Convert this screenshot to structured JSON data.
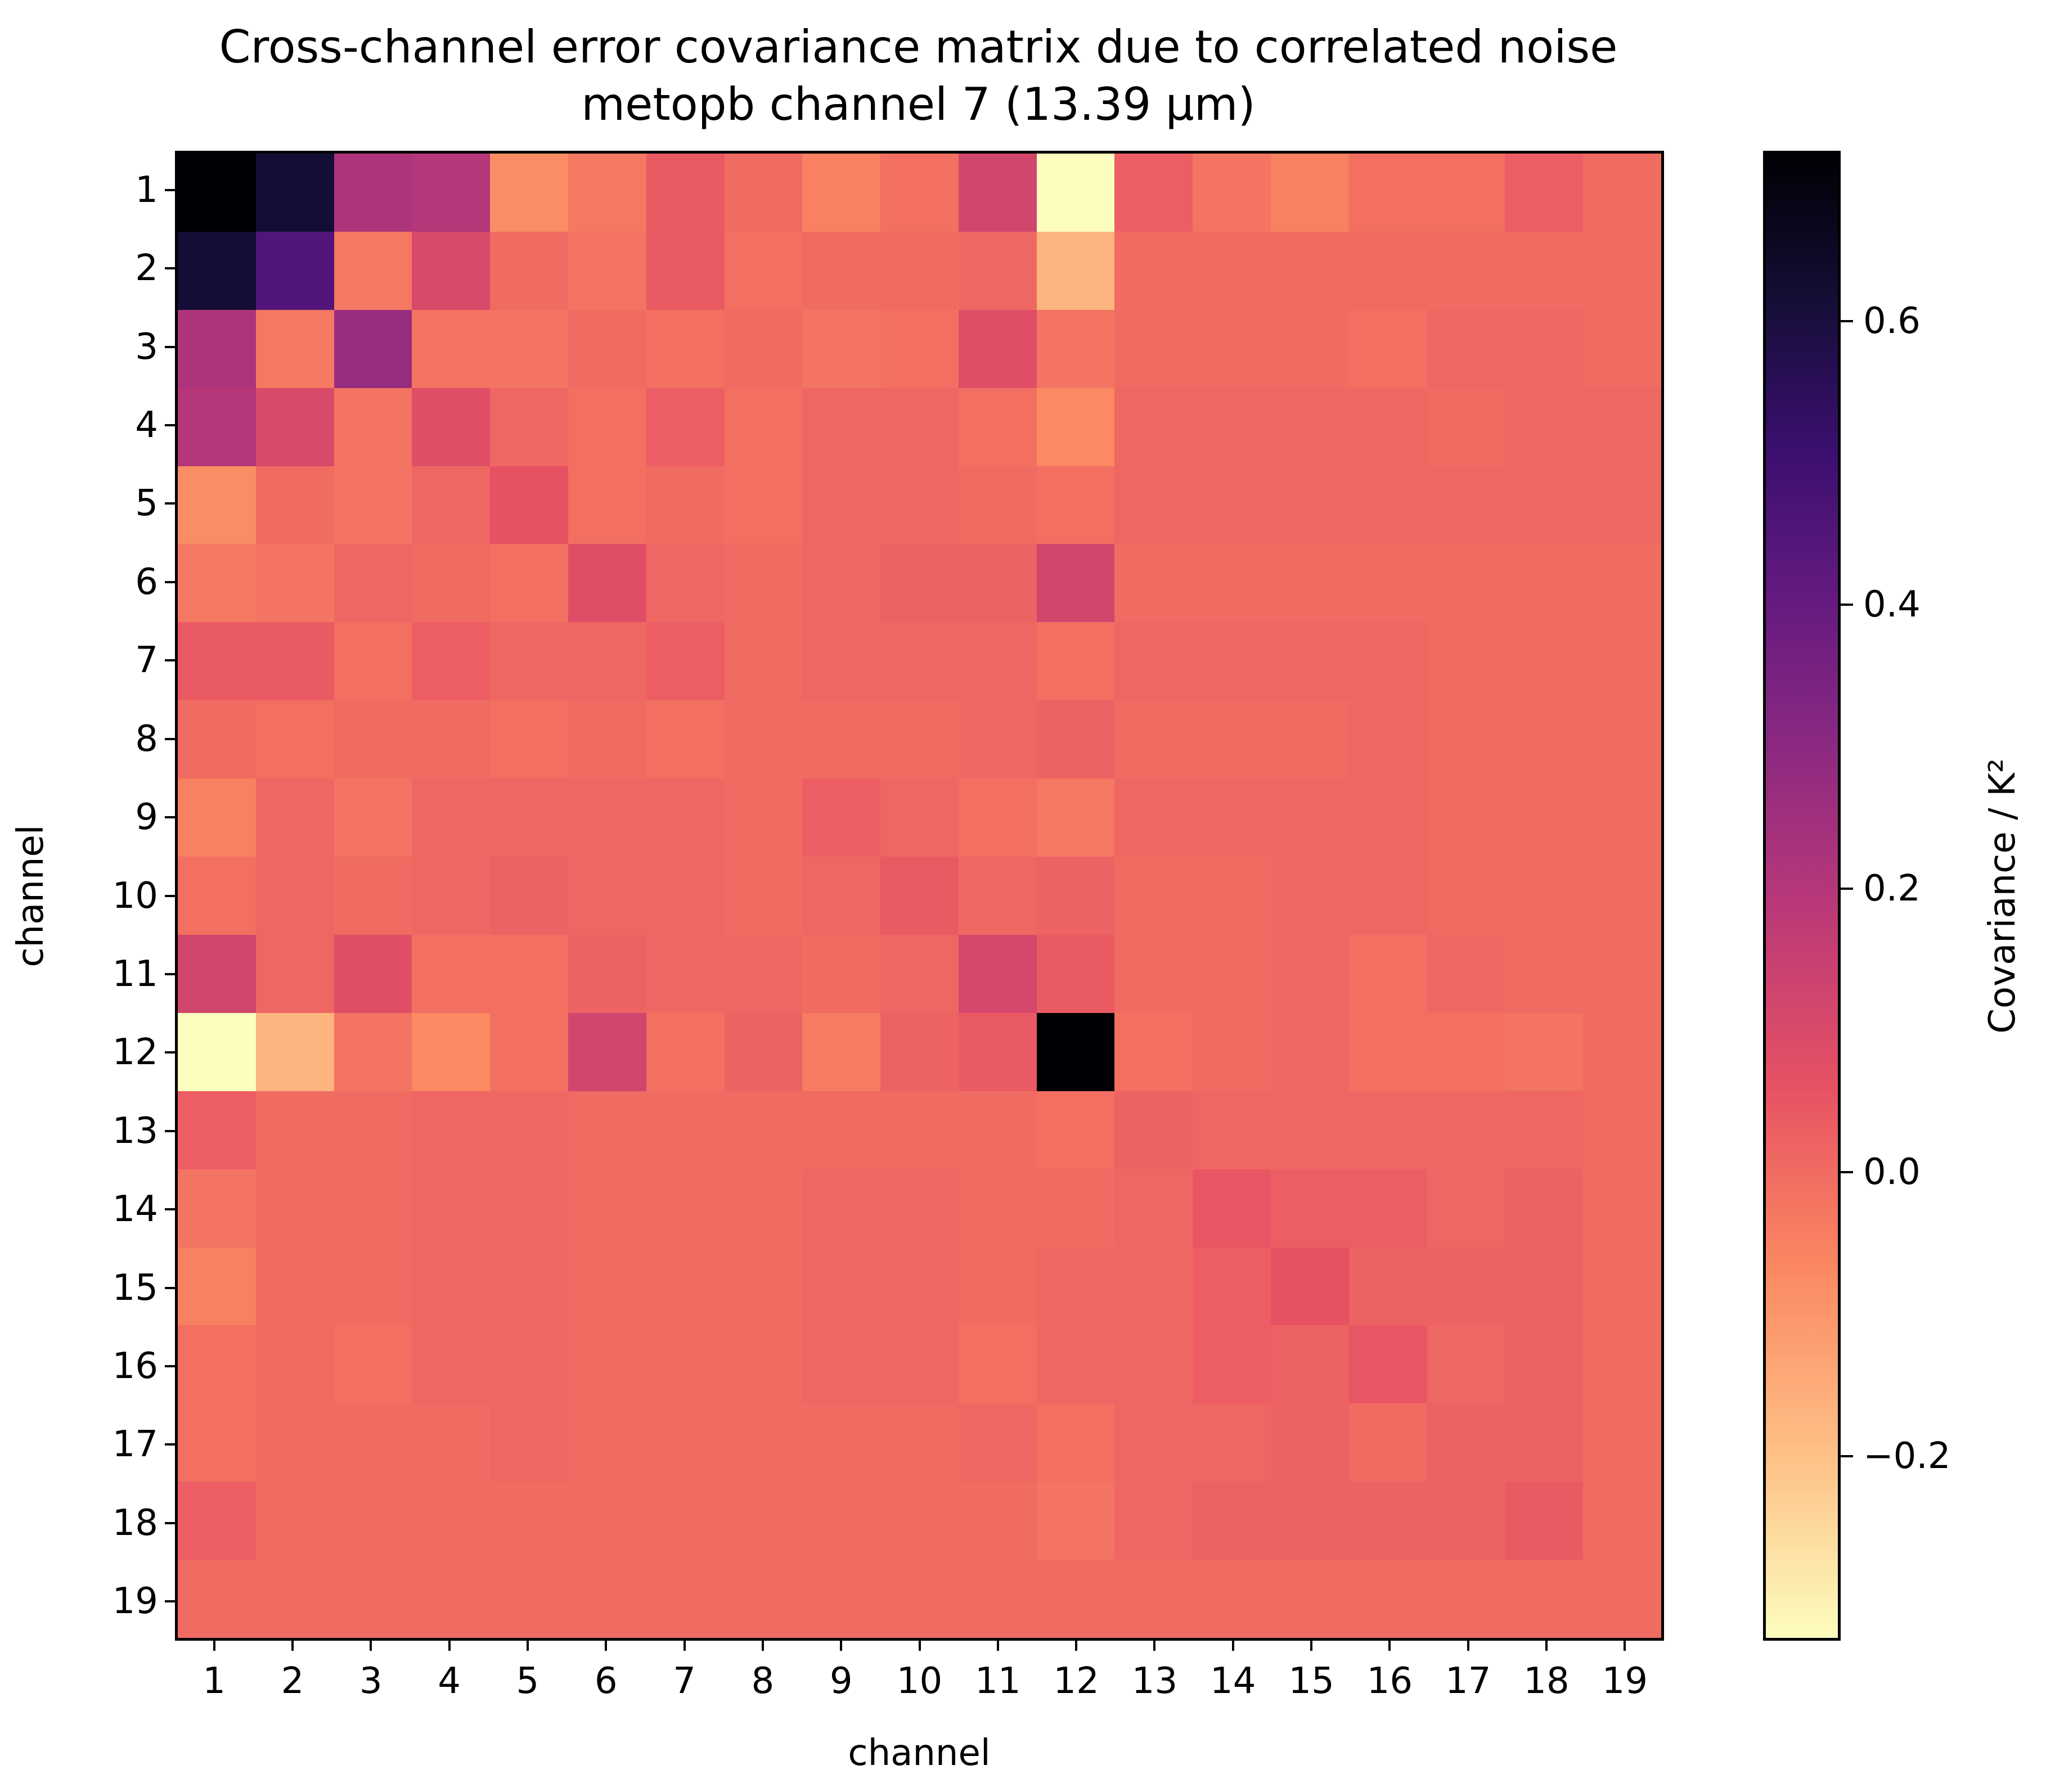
{
  "chart_data": {
    "type": "heatmap",
    "title": "Cross-channel error covariance matrix due to correlated noise",
    "subtitle": "metopb channel 7 (13.39 µm)",
    "xlabel": "channel",
    "ylabel": "channel",
    "x_tick_labels": [
      "1",
      "2",
      "3",
      "4",
      "5",
      "6",
      "7",
      "8",
      "9",
      "10",
      "11",
      "12",
      "13",
      "14",
      "15",
      "16",
      "17",
      "18",
      "19"
    ],
    "y_tick_labels": [
      "1",
      "2",
      "3",
      "4",
      "5",
      "6",
      "7",
      "8",
      "9",
      "10",
      "11",
      "12",
      "13",
      "14",
      "15",
      "16",
      "17",
      "18",
      "19"
    ],
    "colormap": "magma_r",
    "colorbar": {
      "label": "Covariance / K²",
      "vmin": -0.33,
      "vmax": 0.72,
      "ticks": [
        -0.2,
        0.0,
        0.2,
        0.4,
        0.6
      ],
      "tick_labels": [
        "−0.2",
        "0.0",
        "0.2",
        "0.4",
        "0.6"
      ]
    },
    "matrix": [
      [
        0.72,
        0.62,
        0.22,
        0.2,
        -0.08,
        -0.03,
        0.04,
        0.0,
        -0.05,
        -0.01,
        0.12,
        -0.33,
        0.03,
        -0.02,
        -0.05,
        -0.01,
        -0.01,
        0.03,
        0.0
      ],
      [
        0.62,
        0.45,
        -0.03,
        0.1,
        0.0,
        -0.02,
        0.04,
        -0.01,
        0.0,
        0.0,
        0.01,
        -0.17,
        0.0,
        0.0,
        0.0,
        0.0,
        0.0,
        0.0,
        0.0
      ],
      [
        0.22,
        -0.03,
        0.27,
        -0.02,
        -0.02,
        0.0,
        -0.01,
        0.0,
        -0.02,
        -0.01,
        0.08,
        -0.02,
        0.0,
        0.0,
        0.0,
        -0.01,
        0.01,
        0.01,
        0.0
      ],
      [
        0.2,
        0.1,
        -0.02,
        0.08,
        0.01,
        -0.01,
        0.03,
        -0.01,
        0.01,
        0.01,
        -0.01,
        -0.07,
        0.01,
        0.01,
        0.01,
        0.01,
        0.0,
        0.01,
        0.01
      ],
      [
        -0.08,
        0.0,
        -0.02,
        0.01,
        0.06,
        -0.01,
        0.0,
        -0.01,
        0.01,
        0.01,
        0.0,
        -0.01,
        0.01,
        0.01,
        0.01,
        0.01,
        0.01,
        0.01,
        0.01
      ],
      [
        -0.03,
        -0.02,
        0.01,
        0.0,
        -0.01,
        0.08,
        0.01,
        0.0,
        0.01,
        0.02,
        0.02,
        0.12,
        0.0,
        0.0,
        0.0,
        0.0,
        0.0,
        0.0,
        0.0
      ],
      [
        0.04,
        0.04,
        -0.01,
        0.03,
        0.01,
        0.01,
        0.03,
        0.0,
        0.01,
        0.01,
        0.01,
        -0.01,
        0.01,
        0.01,
        0.01,
        0.01,
        0.0,
        0.0,
        0.0
      ],
      [
        0.0,
        -0.01,
        0.0,
        0.0,
        -0.01,
        0.0,
        -0.01,
        0.0,
        0.0,
        0.0,
        0.01,
        0.02,
        0.0,
        0.0,
        0.0,
        0.01,
        0.0,
        0.0,
        0.0
      ],
      [
        -0.05,
        0.01,
        -0.02,
        0.01,
        0.01,
        0.01,
        0.01,
        0.0,
        0.03,
        0.01,
        -0.01,
        -0.03,
        0.01,
        0.01,
        0.01,
        0.01,
        0.0,
        0.0,
        0.0
      ],
      [
        -0.01,
        0.01,
        0.0,
        0.01,
        0.02,
        0.01,
        0.01,
        0.0,
        0.01,
        0.04,
        0.01,
        0.02,
        0.0,
        0.0,
        0.01,
        0.01,
        0.0,
        0.0,
        0.0
      ],
      [
        0.12,
        0.01,
        0.08,
        -0.01,
        -0.01,
        0.02,
        0.01,
        0.01,
        0.0,
        0.01,
        0.11,
        0.04,
        0.0,
        0.0,
        0.01,
        -0.01,
        0.01,
        0.0,
        0.0
      ],
      [
        -0.33,
        -0.17,
        -0.02,
        -0.07,
        -0.01,
        0.12,
        -0.01,
        0.02,
        -0.04,
        0.02,
        0.04,
        0.72,
        -0.01,
        0.0,
        0.01,
        -0.01,
        -0.01,
        -0.02,
        0.0
      ],
      [
        0.03,
        0.0,
        0.0,
        0.01,
        0.01,
        0.0,
        0.0,
        0.0,
        0.0,
        0.0,
        0.0,
        -0.01,
        0.02,
        0.01,
        0.01,
        0.01,
        0.01,
        0.01,
        0.0
      ],
      [
        -0.02,
        0.0,
        0.0,
        0.01,
        0.01,
        0.0,
        0.0,
        0.0,
        0.01,
        0.01,
        0.0,
        0.0,
        0.01,
        0.05,
        0.03,
        0.03,
        0.01,
        0.02,
        0.0
      ],
      [
        -0.05,
        0.0,
        0.0,
        0.01,
        0.01,
        0.0,
        0.0,
        0.0,
        0.01,
        0.01,
        0.0,
        0.01,
        0.01,
        0.03,
        0.06,
        0.02,
        0.02,
        0.02,
        0.0
      ],
      [
        -0.01,
        0.0,
        -0.01,
        0.01,
        0.01,
        0.0,
        0.0,
        0.0,
        0.01,
        0.01,
        -0.01,
        0.01,
        0.01,
        0.03,
        0.02,
        0.05,
        0.01,
        0.02,
        0.0
      ],
      [
        -0.01,
        0.0,
        0.0,
        0.0,
        0.01,
        0.0,
        0.0,
        0.0,
        0.0,
        0.0,
        0.01,
        -0.01,
        0.01,
        0.01,
        0.02,
        0.0,
        0.02,
        0.02,
        0.0
      ],
      [
        0.03,
        0.0,
        0.0,
        0.0,
        0.0,
        0.0,
        0.0,
        0.0,
        0.0,
        0.0,
        0.0,
        -0.02,
        0.01,
        0.02,
        0.02,
        0.02,
        0.02,
        0.04,
        0.0
      ],
      [
        0.0,
        0.0,
        0.0,
        0.0,
        0.0,
        0.0,
        0.0,
        0.0,
        0.0,
        0.0,
        0.0,
        0.0,
        0.0,
        0.0,
        0.0,
        0.0,
        0.0,
        0.0,
        0.0
      ]
    ],
    "layout": {
      "grid": false,
      "colorbar_position": "right"
    }
  }
}
